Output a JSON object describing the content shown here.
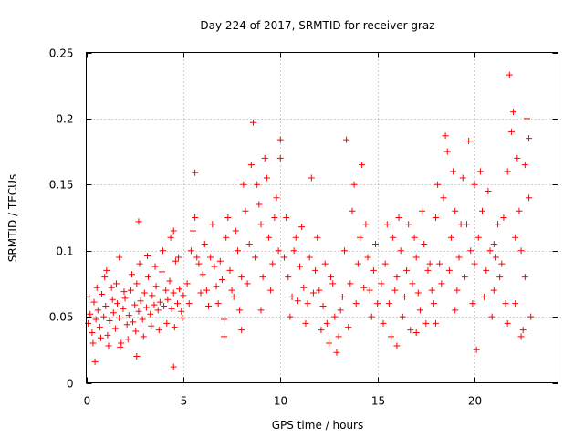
{
  "chart_data": {
    "type": "scatter",
    "title": "Day 224 of 2017, SRMTID for receiver graz",
    "xlabel": "GPS time / hours",
    "ylabel": "SRMTID / TECUs",
    "xlim": [
      0,
      24.3
    ],
    "ylim": [
      0,
      0.25
    ],
    "xticks": [
      0,
      5,
      10,
      15,
      20
    ],
    "xtick_labels": [
      "0",
      "5",
      "10",
      "15",
      "20"
    ],
    "yticks": [
      0,
      0.05,
      0.1,
      0.15,
      0.2,
      0.25
    ],
    "ytick_labels": [
      "0",
      "0.05",
      "0.1",
      "0.15",
      "0.2",
      "0.25"
    ],
    "grid": true,
    "marker": "+",
    "color": "#ff0000",
    "series": [
      {
        "name": "SRMTID",
        "points": [
          [
            0.1,
            0.045
          ],
          [
            0.2,
            0.052
          ],
          [
            0.3,
            0.038
          ],
          [
            0.4,
            0.061
          ],
          [
            0.5,
            0.048
          ],
          [
            0.6,
            0.055
          ],
          [
            0.7,
            0.042
          ],
          [
            0.8,
            0.067
          ],
          [
            0.9,
            0.05
          ],
          [
            1.0,
            0.058
          ],
          [
            1.1,
            0.036
          ],
          [
            1.2,
            0.047
          ],
          [
            1.3,
            0.072
          ],
          [
            1.4,
            0.053
          ],
          [
            1.5,
            0.041
          ],
          [
            1.6,
            0.06
          ],
          [
            1.7,
            0.049
          ],
          [
            1.8,
            0.03
          ],
          [
            1.9,
            0.056
          ],
          [
            2.0,
            0.064
          ],
          [
            2.1,
            0.044
          ],
          [
            2.2,
            0.051
          ],
          [
            2.3,
            0.07
          ],
          [
            2.4,
            0.046
          ],
          [
            2.5,
            0.059
          ],
          [
            2.6,
            0.075
          ],
          [
            2.7,
            0.054
          ],
          [
            2.8,
            0.062
          ],
          [
            2.9,
            0.048
          ],
          [
            3.0,
            0.068
          ],
          [
            3.1,
            0.057
          ],
          [
            3.2,
            0.08
          ],
          [
            3.3,
            0.052
          ],
          [
            3.4,
            0.066
          ],
          [
            3.5,
            0.059
          ],
          [
            3.6,
            0.073
          ],
          [
            3.7,
            0.055
          ],
          [
            3.8,
            0.061
          ],
          [
            3.9,
            0.084
          ],
          [
            4.0,
            0.058
          ],
          [
            4.1,
            0.07
          ],
          [
            4.2,
            0.063
          ],
          [
            4.3,
            0.077
          ],
          [
            4.4,
            0.056
          ],
          [
            4.5,
            0.068
          ],
          [
            4.6,
            0.092
          ],
          [
            4.7,
            0.06
          ],
          [
            4.8,
            0.071
          ],
          [
            4.9,
            0.054
          ],
          [
            5.0,
            0.066
          ],
          [
            0.15,
            0.065
          ],
          [
            0.35,
            0.03
          ],
          [
            0.55,
            0.072
          ],
          [
            0.75,
            0.034
          ],
          [
            0.95,
            0.08
          ],
          [
            1.15,
            0.028
          ],
          [
            1.35,
            0.063
          ],
          [
            1.55,
            0.075
          ],
          [
            1.75,
            0.027
          ],
          [
            1.95,
            0.069
          ],
          [
            2.15,
            0.033
          ],
          [
            2.35,
            0.082
          ],
          [
            2.55,
            0.039
          ],
          [
            2.75,
            0.09
          ],
          [
            2.95,
            0.035
          ],
          [
            3.15,
            0.096
          ],
          [
            3.35,
            0.043
          ],
          [
            3.55,
            0.088
          ],
          [
            3.75,
            0.04
          ],
          [
            3.95,
            0.1
          ],
          [
            4.15,
            0.045
          ],
          [
            4.35,
            0.11
          ],
          [
            4.55,
            0.042
          ],
          [
            4.75,
            0.095
          ],
          [
            4.95,
            0.049
          ],
          [
            0.45,
            0.016
          ],
          [
            1.05,
            0.085
          ],
          [
            1.7,
            0.095
          ],
          [
            2.6,
            0.02
          ],
          [
            2.7,
            0.122
          ],
          [
            4.5,
            0.012
          ],
          [
            4.5,
            0.115
          ],
          [
            5.6,
            0.159
          ],
          [
            5.2,
            0.075
          ],
          [
            5.4,
            0.1
          ],
          [
            5.6,
            0.125
          ],
          [
            5.8,
            0.09
          ],
          [
            6.0,
            0.082
          ],
          [
            6.2,
            0.07
          ],
          [
            6.4,
            0.095
          ],
          [
            6.6,
            0.088
          ],
          [
            6.8,
            0.06
          ],
          [
            7.0,
            0.078
          ],
          [
            7.2,
            0.11
          ],
          [
            7.4,
            0.085
          ],
          [
            7.6,
            0.065
          ],
          [
            7.8,
            0.1
          ],
          [
            8.0,
            0.08
          ],
          [
            8.2,
            0.13
          ],
          [
            8.4,
            0.105
          ],
          [
            8.6,
            0.197
          ],
          [
            8.8,
            0.15
          ],
          [
            9.0,
            0.12
          ],
          [
            9.2,
            0.17
          ],
          [
            9.4,
            0.11
          ],
          [
            9.6,
            0.09
          ],
          [
            9.8,
            0.14
          ],
          [
            10.0,
            0.184
          ],
          [
            5.3,
            0.06
          ],
          [
            5.5,
            0.115
          ],
          [
            5.7,
            0.095
          ],
          [
            5.9,
            0.068
          ],
          [
            6.1,
            0.105
          ],
          [
            6.3,
            0.058
          ],
          [
            6.5,
            0.12
          ],
          [
            6.7,
            0.073
          ],
          [
            6.9,
            0.092
          ],
          [
            7.1,
            0.048
          ],
          [
            7.3,
            0.125
          ],
          [
            7.5,
            0.07
          ],
          [
            7.7,
            0.115
          ],
          [
            7.9,
            0.055
          ],
          [
            8.1,
            0.15
          ],
          [
            8.3,
            0.075
          ],
          [
            8.5,
            0.165
          ],
          [
            8.7,
            0.095
          ],
          [
            8.9,
            0.135
          ],
          [
            9.1,
            0.08
          ],
          [
            9.3,
            0.155
          ],
          [
            9.5,
            0.07
          ],
          [
            9.7,
            0.125
          ],
          [
            9.9,
            0.1
          ],
          [
            7.1,
            0.035
          ],
          [
            8.0,
            0.04
          ],
          [
            9.0,
            0.055
          ],
          [
            10.0,
            0.17
          ],
          [
            10.2,
            0.095
          ],
          [
            10.4,
            0.08
          ],
          [
            10.6,
            0.065
          ],
          [
            10.8,
            0.11
          ],
          [
            11.0,
            0.088
          ],
          [
            11.2,
            0.072
          ],
          [
            11.4,
            0.06
          ],
          [
            11.6,
            0.155
          ],
          [
            11.8,
            0.085
          ],
          [
            12.0,
            0.07
          ],
          [
            12.2,
            0.058
          ],
          [
            12.4,
            0.045
          ],
          [
            12.6,
            0.08
          ],
          [
            12.8,
            0.05
          ],
          [
            13.0,
            0.035
          ],
          [
            13.2,
            0.065
          ],
          [
            13.4,
            0.184
          ],
          [
            13.6,
            0.075
          ],
          [
            13.8,
            0.15
          ],
          [
            14.0,
            0.09
          ],
          [
            14.2,
            0.165
          ],
          [
            14.4,
            0.12
          ],
          [
            14.6,
            0.07
          ],
          [
            14.8,
            0.085
          ],
          [
            15.0,
            0.06
          ],
          [
            10.3,
            0.125
          ],
          [
            10.5,
            0.05
          ],
          [
            10.7,
            0.1
          ],
          [
            10.9,
            0.062
          ],
          [
            11.1,
            0.118
          ],
          [
            11.3,
            0.045
          ],
          [
            11.5,
            0.095
          ],
          [
            11.7,
            0.068
          ],
          [
            11.9,
            0.11
          ],
          [
            12.1,
            0.04
          ],
          [
            12.3,
            0.09
          ],
          [
            12.5,
            0.03
          ],
          [
            12.7,
            0.075
          ],
          [
            12.9,
            0.023
          ],
          [
            13.1,
            0.055
          ],
          [
            13.3,
            0.1
          ],
          [
            13.5,
            0.042
          ],
          [
            13.7,
            0.13
          ],
          [
            13.9,
            0.06
          ],
          [
            14.1,
            0.11
          ],
          [
            14.3,
            0.072
          ],
          [
            14.5,
            0.095
          ],
          [
            14.7,
            0.05
          ],
          [
            14.9,
            0.105
          ],
          [
            15.2,
            0.075
          ],
          [
            15.4,
            0.09
          ],
          [
            15.6,
            0.06
          ],
          [
            15.8,
            0.11
          ],
          [
            16.0,
            0.08
          ],
          [
            16.2,
            0.1
          ],
          [
            16.4,
            0.065
          ],
          [
            16.6,
            0.12
          ],
          [
            16.8,
            0.075
          ],
          [
            17.0,
            0.095
          ],
          [
            17.2,
            0.055
          ],
          [
            17.4,
            0.105
          ],
          [
            17.6,
            0.085
          ],
          [
            17.8,
            0.07
          ],
          [
            18.0,
            0.125
          ],
          [
            18.2,
            0.09
          ],
          [
            18.4,
            0.14
          ],
          [
            18.6,
            0.175
          ],
          [
            18.8,
            0.11
          ],
          [
            19.0,
            0.13
          ],
          [
            19.2,
            0.095
          ],
          [
            19.4,
            0.155
          ],
          [
            19.6,
            0.12
          ],
          [
            19.8,
            0.1
          ],
          [
            20.0,
            0.15
          ],
          [
            15.3,
            0.045
          ],
          [
            15.5,
            0.12
          ],
          [
            15.7,
            0.035
          ],
          [
            15.9,
            0.07
          ],
          [
            16.1,
            0.125
          ],
          [
            16.3,
            0.05
          ],
          [
            16.5,
            0.085
          ],
          [
            16.7,
            0.04
          ],
          [
            16.9,
            0.11
          ],
          [
            17.1,
            0.068
          ],
          [
            17.3,
            0.13
          ],
          [
            17.5,
            0.045
          ],
          [
            17.7,
            0.09
          ],
          [
            17.9,
            0.06
          ],
          [
            18.1,
            0.15
          ],
          [
            18.3,
            0.075
          ],
          [
            18.5,
            0.187
          ],
          [
            18.7,
            0.085
          ],
          [
            18.9,
            0.16
          ],
          [
            19.1,
            0.07
          ],
          [
            19.3,
            0.12
          ],
          [
            19.5,
            0.08
          ],
          [
            19.7,
            0.183
          ],
          [
            19.9,
            0.06
          ],
          [
            20.1,
            0.025
          ],
          [
            16.0,
            0.028
          ],
          [
            17.0,
            0.038
          ],
          [
            18.0,
            0.045
          ],
          [
            19.0,
            0.055
          ],
          [
            20.2,
            0.11
          ],
          [
            20.4,
            0.13
          ],
          [
            20.6,
            0.085
          ],
          [
            20.8,
            0.1
          ],
          [
            21.0,
            0.07
          ],
          [
            21.2,
            0.12
          ],
          [
            21.4,
            0.09
          ],
          [
            21.6,
            0.06
          ],
          [
            21.8,
            0.233
          ],
          [
            22.0,
            0.205
          ],
          [
            22.2,
            0.17
          ],
          [
            22.4,
            0.1
          ],
          [
            22.6,
            0.08
          ],
          [
            22.8,
            0.14
          ],
          [
            20.3,
            0.16
          ],
          [
            20.5,
            0.065
          ],
          [
            20.7,
            0.145
          ],
          [
            20.9,
            0.05
          ],
          [
            21.1,
            0.095
          ],
          [
            21.3,
            0.08
          ],
          [
            21.5,
            0.125
          ],
          [
            21.7,
            0.045
          ],
          [
            21.9,
            0.19
          ],
          [
            22.1,
            0.06
          ],
          [
            22.3,
            0.13
          ],
          [
            22.5,
            0.04
          ],
          [
            22.7,
            0.2
          ],
          [
            22.9,
            0.05
          ],
          [
            22.6,
            0.165
          ],
          [
            22.4,
            0.035
          ],
          [
            21.0,
            0.105
          ],
          [
            20.0,
            0.09
          ],
          [
            21.7,
            0.16
          ],
          [
            22.8,
            0.185
          ],
          [
            22.1,
            0.11
          ]
        ]
      }
    ]
  }
}
